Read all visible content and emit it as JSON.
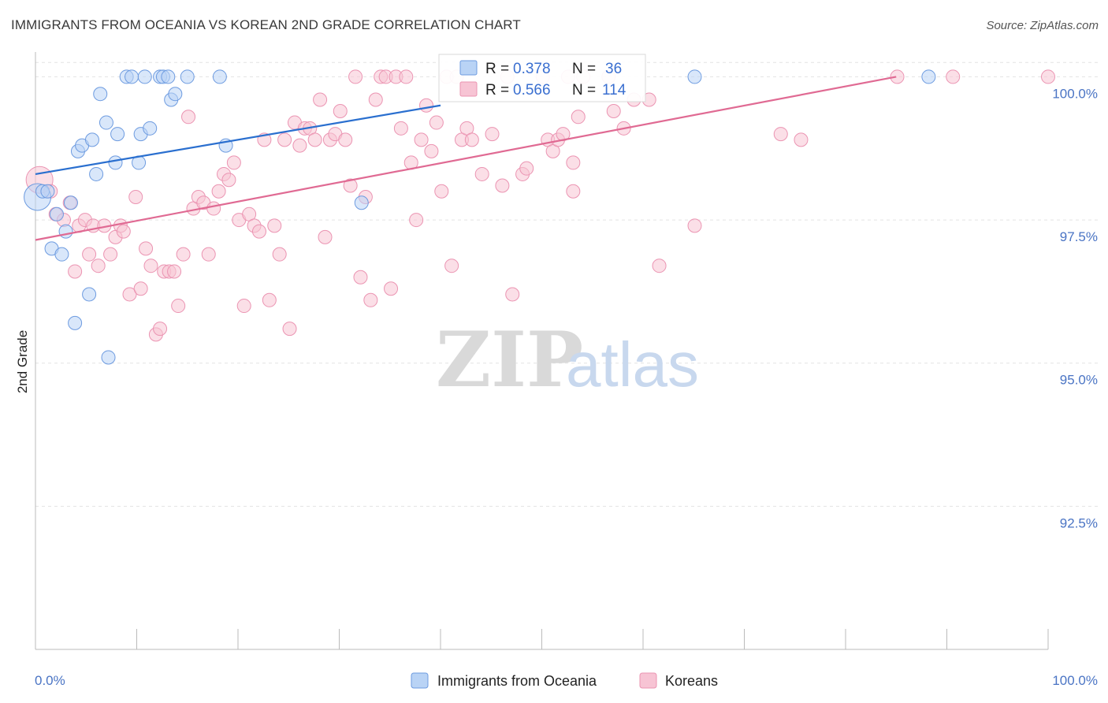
{
  "header": {
    "title": "IMMIGRANTS FROM OCEANIA VS KOREAN 2ND GRADE CORRELATION CHART",
    "source": "Source: ZipAtlas.com"
  },
  "watermark": {
    "zip": "ZIP",
    "atlas": "atlas"
  },
  "colors": {
    "blue_fill": "#b9d3f5",
    "blue_stroke": "#6d9be0",
    "blue_line": "#2a6fcf",
    "pink_fill": "#f7c4d4",
    "pink_stroke": "#eb94b2",
    "pink_line": "#e06a93"
  },
  "legend_box": {
    "rows": [
      {
        "r_label": "R = ",
        "r_value": "0.378",
        "n_label": "N = ",
        "n_value": "36"
      },
      {
        "r_label": "R = ",
        "r_value": "0.566",
        "n_label": "N = ",
        "n_value": "114"
      }
    ]
  },
  "chart_data": {
    "type": "scatter",
    "title": "IMMIGRANTS FROM OCEANIA VS KOREAN 2ND GRADE CORRELATION CHART",
    "xlabel": "",
    "ylabel": "2nd Grade",
    "xlim": [
      0,
      100
    ],
    "ylim": [
      90.0,
      100.35
    ],
    "x_tick_labels": [
      "0.0%",
      "100.0%"
    ],
    "y_ticks": [
      100.0,
      97.5,
      95.0,
      92.5
    ],
    "y_tick_labels": [
      "100.0%",
      "97.5%",
      "95.0%",
      "92.5%"
    ],
    "legend_placement": "bottom-center",
    "grid": "horizontal dashed",
    "series": [
      {
        "name": "Immigrants from Oceania",
        "r": 0.378,
        "n": 36,
        "trend": {
          "x": [
            0,
            40
          ],
          "y": [
            98.3,
            99.5
          ]
        },
        "points": [
          {
            "x": 0.2,
            "y": 97.9,
            "s": "big"
          },
          {
            "x": 0.7,
            "y": 98.0
          },
          {
            "x": 1.2,
            "y": 98.0
          },
          {
            "x": 3.5,
            "y": 97.8
          },
          {
            "x": 2.1,
            "y": 97.6
          },
          {
            "x": 3.0,
            "y": 97.3
          },
          {
            "x": 1.6,
            "y": 97.0
          },
          {
            "x": 2.6,
            "y": 96.9
          },
          {
            "x": 5.3,
            "y": 96.2
          },
          {
            "x": 3.9,
            "y": 95.7
          },
          {
            "x": 7.2,
            "y": 95.1
          },
          {
            "x": 6.0,
            "y": 98.3
          },
          {
            "x": 4.2,
            "y": 98.7
          },
          {
            "x": 4.6,
            "y": 98.8
          },
          {
            "x": 5.6,
            "y": 98.9
          },
          {
            "x": 6.4,
            "y": 99.7
          },
          {
            "x": 7.0,
            "y": 99.2
          },
          {
            "x": 8.1,
            "y": 99.0
          },
          {
            "x": 7.9,
            "y": 98.5
          },
          {
            "x": 10.2,
            "y": 98.5
          },
          {
            "x": 10.4,
            "y": 99.0
          },
          {
            "x": 11.3,
            "y": 99.1
          },
          {
            "x": 9.0,
            "y": 100.0
          },
          {
            "x": 9.5,
            "y": 100.0
          },
          {
            "x": 10.8,
            "y": 100.0
          },
          {
            "x": 12.3,
            "y": 100.0
          },
          {
            "x": 12.6,
            "y": 100.0
          },
          {
            "x": 13.1,
            "y": 100.0
          },
          {
            "x": 13.4,
            "y": 99.6
          },
          {
            "x": 13.8,
            "y": 99.7
          },
          {
            "x": 15.0,
            "y": 100.0
          },
          {
            "x": 18.2,
            "y": 100.0
          },
          {
            "x": 18.8,
            "y": 98.8
          },
          {
            "x": 32.2,
            "y": 97.8
          },
          {
            "x": 65.1,
            "y": 100.0
          },
          {
            "x": 88.2,
            "y": 100.0
          }
        ]
      },
      {
        "name": "Koreans",
        "r": 0.566,
        "n": 114,
        "trend": {
          "x": [
            0,
            85
          ],
          "y": [
            97.15,
            100.0
          ]
        },
        "points": [
          {
            "x": 0.4,
            "y": 98.2,
            "s": "big"
          },
          {
            "x": 1.5,
            "y": 98.0
          },
          {
            "x": 2.0,
            "y": 97.6
          },
          {
            "x": 2.8,
            "y": 97.5
          },
          {
            "x": 3.4,
            "y": 97.8
          },
          {
            "x": 3.9,
            "y": 96.6
          },
          {
            "x": 4.3,
            "y": 97.4
          },
          {
            "x": 4.9,
            "y": 97.5
          },
          {
            "x": 5.3,
            "y": 96.9
          },
          {
            "x": 5.7,
            "y": 97.4
          },
          {
            "x": 6.2,
            "y": 96.7
          },
          {
            "x": 6.8,
            "y": 97.4
          },
          {
            "x": 7.4,
            "y": 96.9
          },
          {
            "x": 7.9,
            "y": 97.2
          },
          {
            "x": 8.4,
            "y": 97.4
          },
          {
            "x": 8.7,
            "y": 97.3
          },
          {
            "x": 9.3,
            "y": 96.2
          },
          {
            "x": 9.9,
            "y": 97.9
          },
          {
            "x": 10.4,
            "y": 96.3
          },
          {
            "x": 10.9,
            "y": 97.0
          },
          {
            "x": 11.4,
            "y": 96.7
          },
          {
            "x": 11.9,
            "y": 95.5
          },
          {
            "x": 12.3,
            "y": 95.6
          },
          {
            "x": 12.7,
            "y": 96.6
          },
          {
            "x": 13.2,
            "y": 96.6
          },
          {
            "x": 13.7,
            "y": 96.6
          },
          {
            "x": 14.1,
            "y": 96.0
          },
          {
            "x": 14.6,
            "y": 96.9
          },
          {
            "x": 15.1,
            "y": 99.3
          },
          {
            "x": 15.6,
            "y": 97.7
          },
          {
            "x": 16.1,
            "y": 97.9
          },
          {
            "x": 16.6,
            "y": 97.8
          },
          {
            "x": 17.1,
            "y": 96.9
          },
          {
            "x": 17.6,
            "y": 97.7
          },
          {
            "x": 18.1,
            "y": 98.0
          },
          {
            "x": 18.6,
            "y": 98.3
          },
          {
            "x": 19.1,
            "y": 98.2
          },
          {
            "x": 19.6,
            "y": 98.5
          },
          {
            "x": 20.1,
            "y": 97.5
          },
          {
            "x": 20.6,
            "y": 96.0
          },
          {
            "x": 21.1,
            "y": 97.6
          },
          {
            "x": 21.6,
            "y": 97.4
          },
          {
            "x": 22.1,
            "y": 97.3
          },
          {
            "x": 22.6,
            "y": 98.9
          },
          {
            "x": 23.1,
            "y": 96.1
          },
          {
            "x": 23.6,
            "y": 97.4
          },
          {
            "x": 24.1,
            "y": 96.9
          },
          {
            "x": 24.6,
            "y": 98.9
          },
          {
            "x": 25.1,
            "y": 95.6
          },
          {
            "x": 25.6,
            "y": 99.2
          },
          {
            "x": 26.1,
            "y": 98.8
          },
          {
            "x": 26.6,
            "y": 99.1
          },
          {
            "x": 27.1,
            "y": 99.1
          },
          {
            "x": 27.6,
            "y": 98.9
          },
          {
            "x": 28.1,
            "y": 99.6
          },
          {
            "x": 28.6,
            "y": 97.2
          },
          {
            "x": 29.1,
            "y": 98.9
          },
          {
            "x": 29.6,
            "y": 99.0
          },
          {
            "x": 30.1,
            "y": 99.4
          },
          {
            "x": 30.6,
            "y": 98.9
          },
          {
            "x": 31.1,
            "y": 98.1
          },
          {
            "x": 31.6,
            "y": 100.0
          },
          {
            "x": 32.1,
            "y": 96.5
          },
          {
            "x": 32.6,
            "y": 97.9
          },
          {
            "x": 33.1,
            "y": 96.1
          },
          {
            "x": 33.6,
            "y": 99.6
          },
          {
            "x": 34.1,
            "y": 100.0
          },
          {
            "x": 34.6,
            "y": 100.0
          },
          {
            "x": 35.1,
            "y": 96.3
          },
          {
            "x": 35.6,
            "y": 100.0
          },
          {
            "x": 36.1,
            "y": 99.1
          },
          {
            "x": 36.6,
            "y": 100.0
          },
          {
            "x": 37.1,
            "y": 98.5
          },
          {
            "x": 37.6,
            "y": 97.5
          },
          {
            "x": 38.1,
            "y": 98.9
          },
          {
            "x": 38.6,
            "y": 99.5
          },
          {
            "x": 39.1,
            "y": 98.7
          },
          {
            "x": 39.6,
            "y": 99.2
          },
          {
            "x": 40.1,
            "y": 98.0
          },
          {
            "x": 40.6,
            "y": 100.0
          },
          {
            "x": 41.1,
            "y": 96.7
          },
          {
            "x": 41.6,
            "y": 100.0
          },
          {
            "x": 42.1,
            "y": 98.9
          },
          {
            "x": 42.6,
            "y": 99.1
          },
          {
            "x": 43.1,
            "y": 98.9
          },
          {
            "x": 44.1,
            "y": 98.3
          },
          {
            "x": 46.1,
            "y": 98.1
          },
          {
            "x": 46.6,
            "y": 100.0
          },
          {
            "x": 47.1,
            "y": 96.2
          },
          {
            "x": 48.1,
            "y": 98.3
          },
          {
            "x": 48.5,
            "y": 98.4
          },
          {
            "x": 50.1,
            "y": 100.0
          },
          {
            "x": 50.6,
            "y": 98.9
          },
          {
            "x": 51.1,
            "y": 98.7
          },
          {
            "x": 51.6,
            "y": 98.9
          },
          {
            "x": 52.1,
            "y": 99.0
          },
          {
            "x": 52.6,
            "y": 100.0
          },
          {
            "x": 53.1,
            "y": 98.5
          },
          {
            "x": 53.6,
            "y": 99.3
          },
          {
            "x": 54.1,
            "y": 100.0
          },
          {
            "x": 56.6,
            "y": 100.0
          },
          {
            "x": 57.1,
            "y": 99.4
          },
          {
            "x": 58.1,
            "y": 99.1
          },
          {
            "x": 59.1,
            "y": 99.6
          },
          {
            "x": 60.6,
            "y": 99.6
          },
          {
            "x": 61.6,
            "y": 96.7
          },
          {
            "x": 65.1,
            "y": 97.4
          },
          {
            "x": 73.6,
            "y": 99.0
          },
          {
            "x": 75.6,
            "y": 98.9
          },
          {
            "x": 85.1,
            "y": 100.0
          },
          {
            "x": 90.6,
            "y": 100.0
          },
          {
            "x": 100.0,
            "y": 100.0
          },
          {
            "x": 53.1,
            "y": 98.0
          },
          {
            "x": 45.1,
            "y": 99.0
          }
        ]
      }
    ]
  }
}
